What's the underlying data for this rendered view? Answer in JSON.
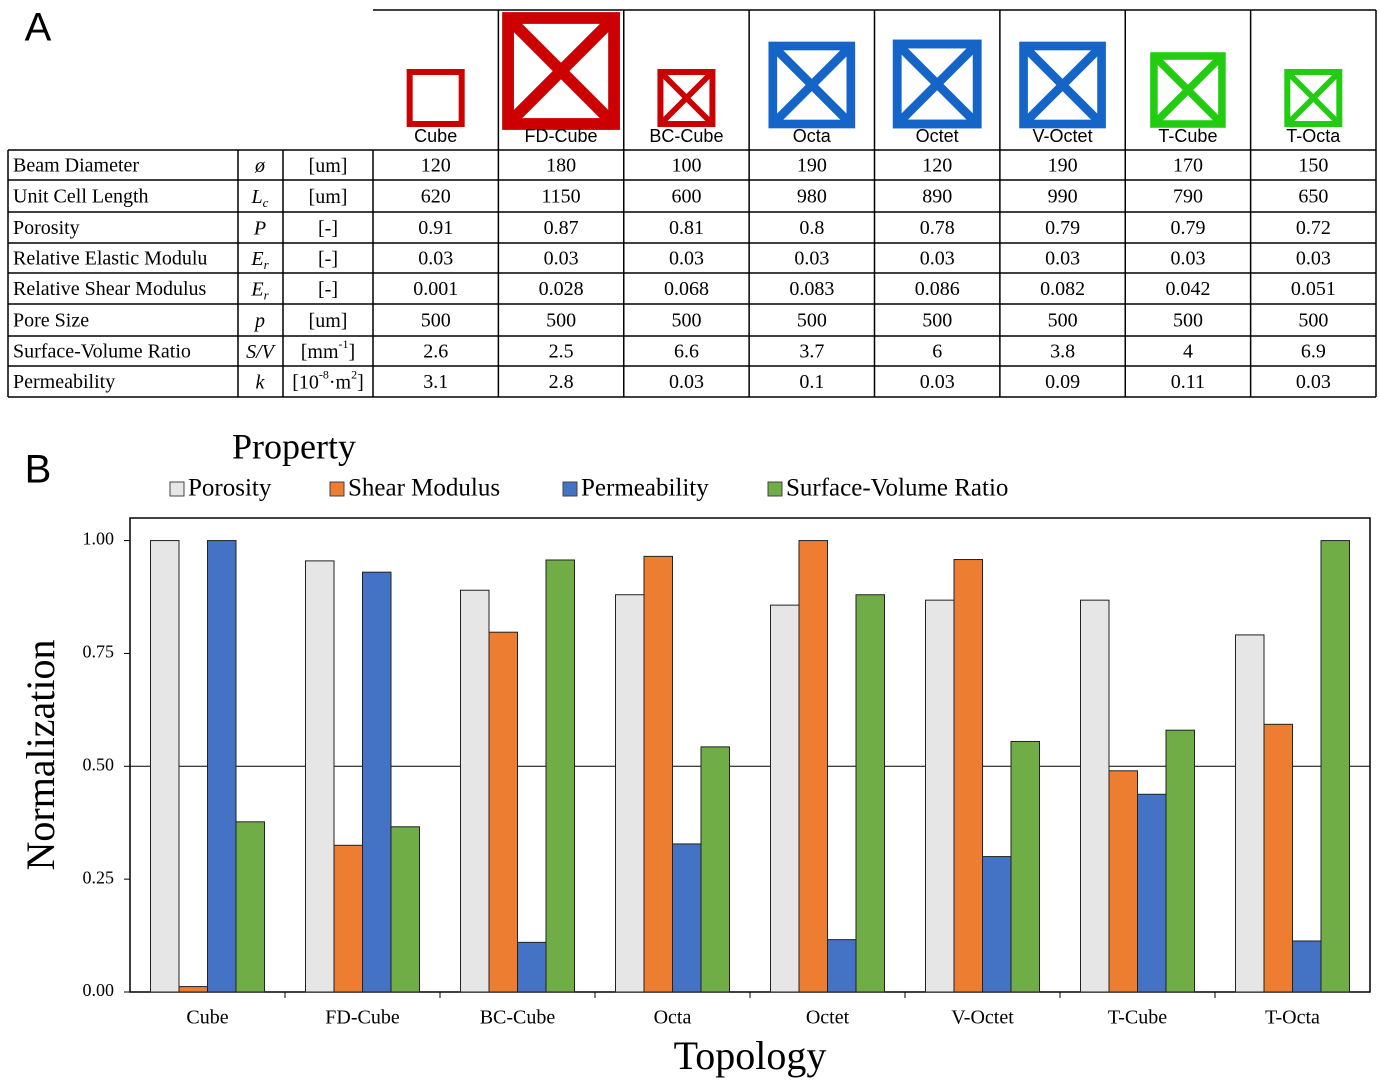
{
  "panel_labels": [
    "A",
    "B"
  ],
  "table": {
    "columns": [
      "Cube",
      "FD-Cube",
      "BC-Cube",
      "Octa",
      "Octet",
      "V-Octet",
      "T-Cube",
      "T-Octa"
    ],
    "rows": [
      {
        "label": "Beam Diameter",
        "symbol": "ø",
        "unit": [
          "[um]"
        ],
        "values": [
          120,
          180,
          100,
          190,
          120,
          190,
          170,
          150
        ]
      },
      {
        "label": "Unit Cell Length",
        "symbol": "L",
        "symbol_sub": "c",
        "unit": [
          "[um]"
        ],
        "values": [
          620,
          1150,
          600,
          980,
          890,
          990,
          790,
          650
        ]
      },
      {
        "label": "Porosity",
        "symbol": "P",
        "unit": [
          "[-]"
        ],
        "values": [
          0.91,
          0.87,
          0.81,
          0.8,
          0.78,
          0.79,
          0.79,
          0.72
        ]
      },
      {
        "label": "Relative Elastic Modulu",
        "symbol": "E",
        "symbol_sub": "r",
        "unit": [
          "[-]"
        ],
        "values": [
          0.03,
          0.03,
          0.03,
          0.03,
          0.03,
          0.03,
          0.03,
          0.03
        ]
      },
      {
        "label": "Relative Shear Modulus",
        "symbol": "E",
        "symbol_sub": "r",
        "unit": [
          "[-]"
        ],
        "values": [
          0.001,
          0.028,
          0.068,
          0.083,
          0.086,
          0.082,
          0.042,
          0.051
        ]
      },
      {
        "label": "Pore Size",
        "symbol": "p",
        "unit": [
          "[um]"
        ],
        "values": [
          500,
          500,
          500,
          500,
          500,
          500,
          500,
          500
        ]
      },
      {
        "label": "Surface-Volume Ratio",
        "symbol": "S/V",
        "unit": [
          "[mm",
          "-1",
          "]"
        ],
        "values": [
          2.6,
          2.5,
          6.6,
          3.7,
          6,
          3.8,
          4,
          6.9
        ]
      },
      {
        "label": "Permeability",
        "symbol": "k",
        "unit": [
          "[10",
          "-8",
          "·m",
          "2",
          "]"
        ],
        "values": [
          3.1,
          2.8,
          0.03,
          0.1,
          0.03,
          0.09,
          0.11,
          0.03
        ]
      }
    ]
  },
  "chart_data": {
    "type": "bar",
    "legend_title": "Property",
    "x_label": "Topology",
    "y_label": "Normalization",
    "categories": [
      "Cube",
      "FD-Cube",
      "BC-Cube",
      "Octa",
      "Octet",
      "V-Octet",
      "T-Cube",
      "T-Octa"
    ],
    "series": [
      {
        "name": "Porosity",
        "color": "#e6e6e6",
        "values": [
          1.0,
          0.955,
          0.89,
          0.88,
          0.857,
          0.868,
          0.868,
          0.791
        ]
      },
      {
        "name": "Shear Modulus",
        "color": "#ed7d31",
        "values": [
          0.012,
          0.325,
          0.797,
          0.965,
          1.0,
          0.958,
          0.49,
          0.593
        ]
      },
      {
        "name": "Permeability",
        "color": "#4472c4",
        "values": [
          1.0,
          0.93,
          0.11,
          0.328,
          0.116,
          0.3,
          0.438,
          0.113
        ]
      },
      {
        "name": "Surface-Volume Ratio",
        "color": "#70ad47",
        "values": [
          0.377,
          0.366,
          0.957,
          0.543,
          0.88,
          0.555,
          0.58,
          1.0
        ]
      }
    ],
    "ylim": [
      0,
      1.05
    ],
    "yticks": [
      {
        "value": 0,
        "label": "0.00"
      },
      {
        "value": 0.25,
        "label": "0.25"
      },
      {
        "value": 0.5,
        "label": "0.50"
      },
      {
        "value": 0.75,
        "label": "0.75"
      },
      {
        "value": 1,
        "label": "1.00"
      }
    ],
    "reference_line": 0.5,
    "legend_position": "top"
  }
}
